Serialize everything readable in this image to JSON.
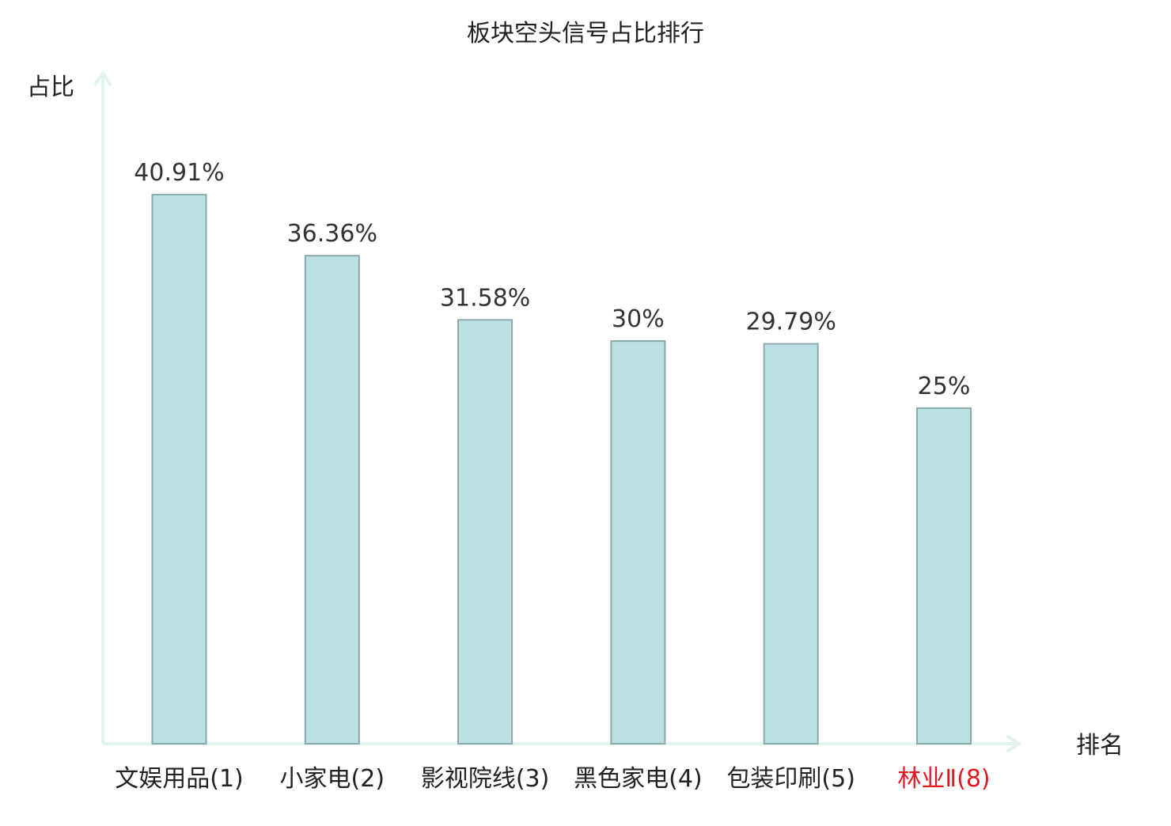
{
  "chart_data": {
    "type": "bar",
    "title": "板块空头信号占比排行",
    "xlabel": "排名",
    "ylabel": "占比",
    "categories": [
      "文娱用品(1)",
      "小家电(2)",
      "影视院线(3)",
      "黑色家电(4)",
      "包装印刷(5)",
      "林业Ⅱ(8)"
    ],
    "values": [
      40.91,
      36.36,
      31.58,
      30,
      29.79,
      25
    ],
    "value_labels": [
      "40.91%",
      "36.36%",
      "31.58%",
      "30%",
      "29.79%",
      "25%"
    ],
    "highlight_index": 5,
    "ylim": [
      0,
      41
    ],
    "grid": false,
    "colors": {
      "bar_fill": "#bce0e3",
      "bar_stroke": "#8aa9ac",
      "axis": "#e3f3f1",
      "text": "#222222",
      "value_text": "#333333",
      "highlight_text": "#e0191f"
    }
  }
}
